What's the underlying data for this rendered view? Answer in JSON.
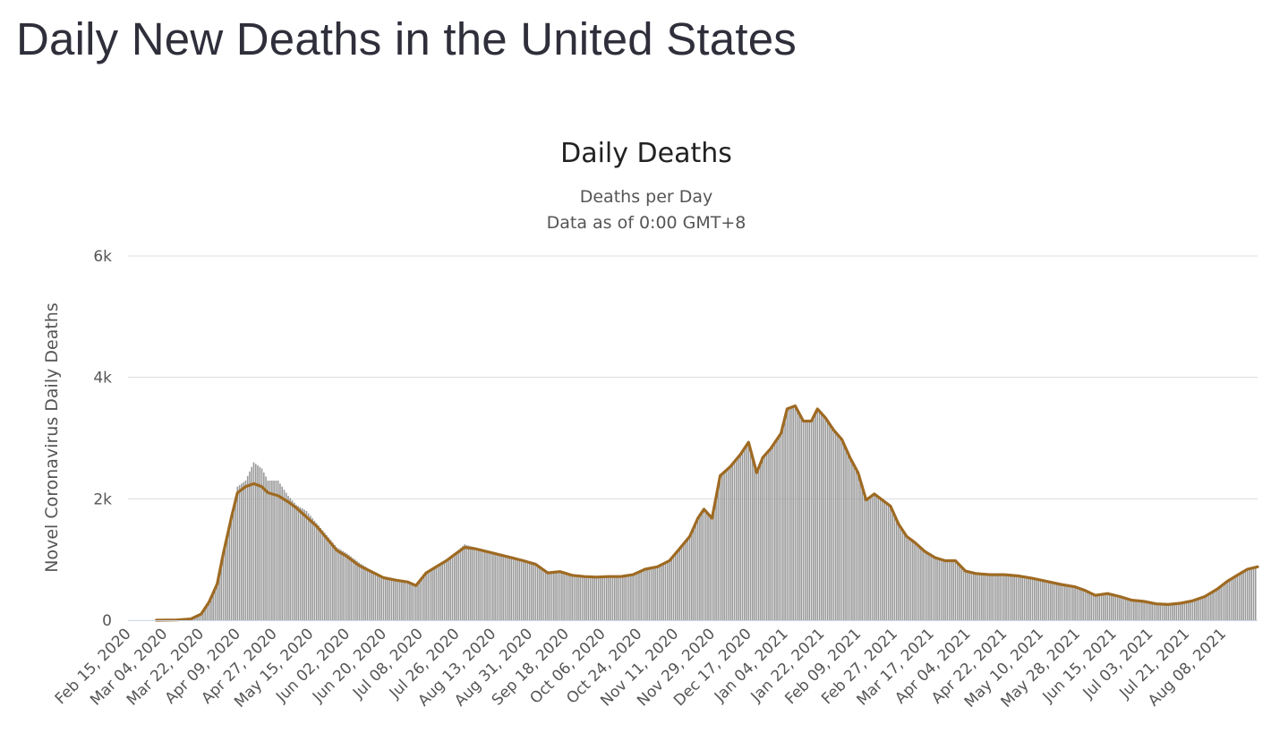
{
  "page": {
    "title": "Daily New Deaths in the United States"
  },
  "chart_data": {
    "type": "bar",
    "title": "Daily Deaths",
    "subtitle_lines": [
      "Deaths per Day",
      "Data as of 0:00 GMT+8"
    ],
    "ylabel": "Novel Coronavirus Daily Deaths",
    "xlabel": "",
    "ylim": [
      0,
      6000
    ],
    "y_ticks": [
      {
        "value": 0,
        "label": "0"
      },
      {
        "value": 2000,
        "label": "2k"
      },
      {
        "value": 4000,
        "label": "4k"
      },
      {
        "value": 6000,
        "label": "6k"
      }
    ],
    "x_start": "2020-02-15",
    "x_end": "2021-08-25",
    "x_tick_labels": [
      "Feb 15, 2020",
      "Mar 04, 2020",
      "Mar 22, 2020",
      "Apr 09, 2020",
      "Apr 27, 2020",
      "May 15, 2020",
      "Jun 02, 2020",
      "Jun 20, 2020",
      "Jul 08, 2020",
      "Jul 26, 2020",
      "Aug 13, 2020",
      "Aug 31, 2020",
      "Sep 18, 2020",
      "Oct 06, 2020",
      "Oct 24, 2020",
      "Nov 11, 2020",
      "Nov 29, 2020",
      "Dec 17, 2020",
      "Jan 04, 2021",
      "Jan 22, 2021",
      "Feb 09, 2021",
      "Feb 27, 2021",
      "Mar 17, 2021",
      "Apr 04, 2021",
      "Apr 22, 2021",
      "May 10, 2021",
      "May 28, 2021",
      "Jun 15, 2021",
      "Jul 03, 2021",
      "Jul 21, 2021",
      "Aug 08, 2021"
    ],
    "grid": true,
    "legend": "none",
    "series": [
      {
        "type": "bar",
        "color": "#999999",
        "points": [
          [
            "2020-02-29",
            0
          ],
          [
            "2020-03-10",
            5
          ],
          [
            "2020-03-17",
            20
          ],
          [
            "2020-03-22",
            100
          ],
          [
            "2020-03-26",
            300
          ],
          [
            "2020-03-30",
            600
          ],
          [
            "2020-04-02",
            1100
          ],
          [
            "2020-04-06",
            1700
          ],
          [
            "2020-04-09",
            2200
          ],
          [
            "2020-04-13",
            2300
          ],
          [
            "2020-04-17",
            2600
          ],
          [
            "2020-04-21",
            2500
          ],
          [
            "2020-04-24",
            2300
          ],
          [
            "2020-04-29",
            2300
          ],
          [
            "2020-05-04",
            2050
          ],
          [
            "2020-05-08",
            1900
          ],
          [
            "2020-05-13",
            1800
          ],
          [
            "2020-05-18",
            1600
          ],
          [
            "2020-05-23",
            1400
          ],
          [
            "2020-05-28",
            1200
          ],
          [
            "2020-06-02",
            1100
          ],
          [
            "2020-06-08",
            950
          ],
          [
            "2020-06-14",
            820
          ],
          [
            "2020-06-20",
            720
          ],
          [
            "2020-06-26",
            680
          ],
          [
            "2020-07-02",
            650
          ],
          [
            "2020-07-06",
            580
          ],
          [
            "2020-07-11",
            800
          ],
          [
            "2020-07-16",
            900
          ],
          [
            "2020-07-21",
            1000
          ],
          [
            "2020-07-25",
            1100
          ],
          [
            "2020-07-30",
            1250
          ],
          [
            "2020-08-04",
            1200
          ],
          [
            "2020-08-10",
            1150
          ],
          [
            "2020-08-16",
            1100
          ],
          [
            "2020-08-22",
            1050
          ],
          [
            "2020-08-28",
            1000
          ],
          [
            "2020-09-03",
            950
          ],
          [
            "2020-09-09",
            800
          ],
          [
            "2020-09-15",
            820
          ],
          [
            "2020-09-21",
            760
          ],
          [
            "2020-09-27",
            730
          ],
          [
            "2020-10-03",
            720
          ],
          [
            "2020-10-09",
            730
          ],
          [
            "2020-10-15",
            730
          ],
          [
            "2020-10-21",
            760
          ],
          [
            "2020-10-27",
            850
          ],
          [
            "2020-11-02",
            900
          ],
          [
            "2020-11-08",
            1000
          ],
          [
            "2020-11-13",
            1200
          ],
          [
            "2020-11-18",
            1400
          ],
          [
            "2020-11-22",
            1700
          ],
          [
            "2020-11-25",
            1850
          ],
          [
            "2020-11-29",
            1700
          ],
          [
            "2020-12-03",
            2400
          ],
          [
            "2020-12-08",
            2550
          ],
          [
            "2020-12-13",
            2750
          ],
          [
            "2020-12-17",
            2950
          ],
          [
            "2020-12-21",
            2450
          ],
          [
            "2020-12-24",
            2700
          ],
          [
            "2020-12-28",
            2850
          ],
          [
            "2021-01-02",
            3100
          ],
          [
            "2021-01-05",
            3500
          ],
          [
            "2021-01-09",
            3550
          ],
          [
            "2021-01-13",
            3300
          ],
          [
            "2021-01-17",
            3300
          ],
          [
            "2021-01-20",
            3500
          ],
          [
            "2021-01-24",
            3350
          ],
          [
            "2021-01-28",
            3150
          ],
          [
            "2021-02-01",
            3000
          ],
          [
            "2021-02-05",
            2700
          ],
          [
            "2021-02-09",
            2450
          ],
          [
            "2021-02-13",
            2000
          ],
          [
            "2021-02-17",
            2100
          ],
          [
            "2021-02-21",
            2000
          ],
          [
            "2021-02-25",
            1900
          ],
          [
            "2021-03-01",
            1600
          ],
          [
            "2021-03-05",
            1400
          ],
          [
            "2021-03-09",
            1300
          ],
          [
            "2021-03-14",
            1150
          ],
          [
            "2021-03-19",
            1050
          ],
          [
            "2021-03-24",
            1000
          ],
          [
            "2021-03-29",
            1000
          ],
          [
            "2021-04-03",
            830
          ],
          [
            "2021-04-08",
            780
          ],
          [
            "2021-04-15",
            760
          ],
          [
            "2021-04-22",
            760
          ],
          [
            "2021-04-29",
            740
          ],
          [
            "2021-05-06",
            700
          ],
          [
            "2021-05-13",
            650
          ],
          [
            "2021-05-20",
            600
          ],
          [
            "2021-05-27",
            560
          ],
          [
            "2021-06-01",
            500
          ],
          [
            "2021-06-06",
            420
          ],
          [
            "2021-06-12",
            450
          ],
          [
            "2021-06-18",
            400
          ],
          [
            "2021-06-24",
            340
          ],
          [
            "2021-06-30",
            320
          ],
          [
            "2021-07-06",
            280
          ],
          [
            "2021-07-12",
            270
          ],
          [
            "2021-07-18",
            290
          ],
          [
            "2021-07-24",
            330
          ],
          [
            "2021-07-30",
            400
          ],
          [
            "2021-08-05",
            520
          ],
          [
            "2021-08-10",
            650
          ],
          [
            "2021-08-15",
            750
          ],
          [
            "2021-08-20",
            850
          ],
          [
            "2021-08-25",
            900
          ]
        ]
      },
      {
        "type": "line",
        "color": "#9e6a22",
        "points": [
          [
            "2020-02-29",
            0
          ],
          [
            "2020-03-10",
            5
          ],
          [
            "2020-03-17",
            20
          ],
          [
            "2020-03-22",
            100
          ],
          [
            "2020-03-26",
            300
          ],
          [
            "2020-03-30",
            600
          ],
          [
            "2020-04-02",
            1100
          ],
          [
            "2020-04-06",
            1700
          ],
          [
            "2020-04-09",
            2100
          ],
          [
            "2020-04-13",
            2200
          ],
          [
            "2020-04-17",
            2250
          ],
          [
            "2020-04-21",
            2200
          ],
          [
            "2020-04-24",
            2100
          ],
          [
            "2020-04-29",
            2050
          ],
          [
            "2020-05-04",
            1950
          ],
          [
            "2020-05-08",
            1850
          ],
          [
            "2020-05-13",
            1700
          ],
          [
            "2020-05-18",
            1550
          ],
          [
            "2020-05-23",
            1350
          ],
          [
            "2020-05-28",
            1150
          ],
          [
            "2020-06-02",
            1050
          ],
          [
            "2020-06-08",
            900
          ],
          [
            "2020-06-14",
            800
          ],
          [
            "2020-06-20",
            700
          ],
          [
            "2020-06-26",
            660
          ],
          [
            "2020-07-02",
            630
          ],
          [
            "2020-07-06",
            570
          ],
          [
            "2020-07-11",
            780
          ],
          [
            "2020-07-16",
            880
          ],
          [
            "2020-07-21",
            980
          ],
          [
            "2020-07-25",
            1080
          ],
          [
            "2020-07-30",
            1200
          ],
          [
            "2020-08-04",
            1180
          ],
          [
            "2020-08-10",
            1130
          ],
          [
            "2020-08-16",
            1080
          ],
          [
            "2020-08-22",
            1030
          ],
          [
            "2020-08-28",
            980
          ],
          [
            "2020-09-03",
            920
          ],
          [
            "2020-09-09",
            780
          ],
          [
            "2020-09-15",
            800
          ],
          [
            "2020-09-21",
            740
          ],
          [
            "2020-09-27",
            720
          ],
          [
            "2020-10-03",
            710
          ],
          [
            "2020-10-09",
            720
          ],
          [
            "2020-10-15",
            720
          ],
          [
            "2020-10-21",
            750
          ],
          [
            "2020-10-27",
            840
          ],
          [
            "2020-11-02",
            880
          ],
          [
            "2020-11-08",
            980
          ],
          [
            "2020-11-13",
            1180
          ],
          [
            "2020-11-18",
            1380
          ],
          [
            "2020-11-22",
            1680
          ],
          [
            "2020-11-25",
            1830
          ],
          [
            "2020-11-29",
            1680
          ],
          [
            "2020-12-03",
            2380
          ],
          [
            "2020-12-08",
            2530
          ],
          [
            "2020-12-13",
            2730
          ],
          [
            "2020-12-17",
            2930
          ],
          [
            "2020-12-21",
            2430
          ],
          [
            "2020-12-24",
            2680
          ],
          [
            "2020-12-28",
            2830
          ],
          [
            "2021-01-02",
            3080
          ],
          [
            "2021-01-05",
            3480
          ],
          [
            "2021-01-09",
            3530
          ],
          [
            "2021-01-13",
            3280
          ],
          [
            "2021-01-17",
            3280
          ],
          [
            "2021-01-20",
            3480
          ],
          [
            "2021-01-24",
            3330
          ],
          [
            "2021-01-28",
            3130
          ],
          [
            "2021-02-01",
            2980
          ],
          [
            "2021-02-05",
            2680
          ],
          [
            "2021-02-09",
            2430
          ],
          [
            "2021-02-13",
            1980
          ],
          [
            "2021-02-17",
            2080
          ],
          [
            "2021-02-21",
            1980
          ],
          [
            "2021-02-25",
            1880
          ],
          [
            "2021-03-01",
            1580
          ],
          [
            "2021-03-05",
            1380
          ],
          [
            "2021-03-09",
            1280
          ],
          [
            "2021-03-14",
            1130
          ],
          [
            "2021-03-19",
            1030
          ],
          [
            "2021-03-24",
            980
          ],
          [
            "2021-03-29",
            980
          ],
          [
            "2021-04-03",
            810
          ],
          [
            "2021-04-08",
            770
          ],
          [
            "2021-04-15",
            750
          ],
          [
            "2021-04-22",
            750
          ],
          [
            "2021-04-29",
            730
          ],
          [
            "2021-05-06",
            690
          ],
          [
            "2021-05-13",
            640
          ],
          [
            "2021-05-20",
            590
          ],
          [
            "2021-05-27",
            550
          ],
          [
            "2021-06-01",
            490
          ],
          [
            "2021-06-06",
            410
          ],
          [
            "2021-06-12",
            440
          ],
          [
            "2021-06-18",
            390
          ],
          [
            "2021-06-24",
            330
          ],
          [
            "2021-06-30",
            310
          ],
          [
            "2021-07-06",
            270
          ],
          [
            "2021-07-12",
            260
          ],
          [
            "2021-07-18",
            280
          ],
          [
            "2021-07-24",
            320
          ],
          [
            "2021-07-30",
            390
          ],
          [
            "2021-08-05",
            510
          ],
          [
            "2021-08-10",
            640
          ],
          [
            "2021-08-15",
            740
          ],
          [
            "2021-08-20",
            840
          ],
          [
            "2021-08-25",
            880
          ]
        ]
      }
    ]
  }
}
